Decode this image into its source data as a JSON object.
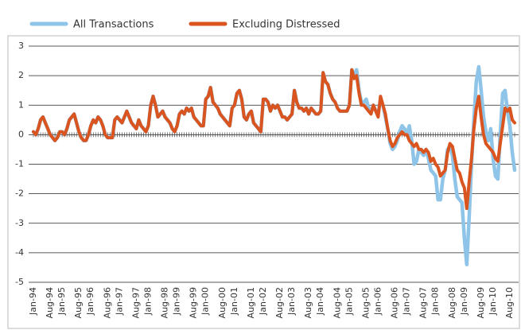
{
  "chart_data": {
    "type": "line",
    "categories": [
      "Jan-94",
      null,
      null,
      null,
      null,
      null,
      null,
      "Aug-94",
      null,
      null,
      null,
      null,
      "Jan-95",
      null,
      null,
      null,
      null,
      null,
      null,
      "Aug-95",
      null,
      null,
      null,
      null,
      "Jan-96",
      null,
      null,
      null,
      null,
      null,
      null,
      "Aug-96",
      null,
      null,
      null,
      null,
      "Jan-97",
      null,
      null,
      null,
      null,
      null,
      null,
      "Aug-97",
      null,
      null,
      null,
      null,
      "Jan-98",
      null,
      null,
      null,
      null,
      null,
      null,
      "Aug-98",
      null,
      null,
      null,
      null,
      "Jan-99",
      null,
      null,
      null,
      null,
      null,
      null,
      "Aug-99",
      null,
      null,
      null,
      null,
      "Jan-00",
      null,
      null,
      null,
      null,
      null,
      null,
      "Aug-00",
      null,
      null,
      null,
      null,
      "Jan-01",
      null,
      null,
      null,
      null,
      null,
      null,
      "Aug-01",
      null,
      null,
      null,
      null,
      "Jan-02",
      null,
      null,
      null,
      null,
      null,
      null,
      "Aug-02",
      null,
      null,
      null,
      null,
      "Jan-03",
      null,
      null,
      null,
      null,
      null,
      null,
      "Aug-03",
      null,
      null,
      null,
      null,
      "Jan-04",
      null,
      null,
      null,
      null,
      null,
      null,
      "Aug-04",
      null,
      null,
      null,
      null,
      "Jan-05",
      null,
      null,
      null,
      null,
      null,
      null,
      "Aug-05",
      null,
      null,
      null,
      null,
      "Jan-06",
      null,
      null,
      null,
      null,
      null,
      null,
      "Aug-06",
      null,
      null,
      null,
      null,
      "Jan-07",
      null,
      null,
      null,
      null,
      null,
      null,
      "Aug-07",
      null,
      null,
      null,
      null,
      "Jan-08",
      null,
      null,
      null,
      null,
      null,
      null,
      "Aug-08",
      null,
      null,
      null,
      null,
      "Jan-09",
      null,
      null,
      null,
      null,
      null,
      null,
      "Aug-09",
      null,
      null,
      null,
      null,
      "Jan-10",
      null,
      null,
      null,
      null,
      null,
      null,
      "Aug-10",
      null,
      null
    ],
    "series": [
      {
        "name": "All Transactions",
        "color": "#8ec4e8",
        "values": [
          0.1,
          0.0,
          0.2,
          0.5,
          0.6,
          0.4,
          0.2,
          0.0,
          -0.1,
          -0.2,
          -0.1,
          0.1,
          0.1,
          0.0,
          0.2,
          0.5,
          0.6,
          0.7,
          0.4,
          0.1,
          -0.1,
          -0.2,
          -0.2,
          0.0,
          0.3,
          0.5,
          0.4,
          0.6,
          0.5,
          0.3,
          0.0,
          -0.1,
          -0.1,
          -0.1,
          0.5,
          0.6,
          0.5,
          0.4,
          0.6,
          0.8,
          0.6,
          0.4,
          0.3,
          0.2,
          0.5,
          0.3,
          0.2,
          0.1,
          0.3,
          1.0,
          1.3,
          1.0,
          0.6,
          0.7,
          0.8,
          0.6,
          0.5,
          0.4,
          0.2,
          0.1,
          0.3,
          0.7,
          0.8,
          0.7,
          0.9,
          0.8,
          0.9,
          0.6,
          0.5,
          0.4,
          0.3,
          0.3,
          1.2,
          1.3,
          1.6,
          1.1,
          1.0,
          0.9,
          0.7,
          0.6,
          0.5,
          0.4,
          0.3,
          0.9,
          1.0,
          1.4,
          1.5,
          1.2,
          0.6,
          0.5,
          0.7,
          0.8,
          0.4,
          0.3,
          0.2,
          0.1,
          1.2,
          1.2,
          1.1,
          0.8,
          1.0,
          0.9,
          1.0,
          0.8,
          0.6,
          0.6,
          0.5,
          0.6,
          0.7,
          1.5,
          1.1,
          0.9,
          0.9,
          0.8,
          0.9,
          0.7,
          0.9,
          0.8,
          0.7,
          0.7,
          0.8,
          2.1,
          1.8,
          1.7,
          1.4,
          1.2,
          1.1,
          0.9,
          0.8,
          0.8,
          0.8,
          0.8,
          1.0,
          2.2,
          2.0,
          2.2,
          1.5,
          1.1,
          1.1,
          1.2,
          0.9,
          0.8,
          1.0,
          0.8,
          0.7,
          1.2,
          1.0,
          0.6,
          0.2,
          -0.3,
          -0.5,
          -0.4,
          -0.2,
          0.1,
          0.3,
          0.2,
          0.0,
          0.3,
          -0.2,
          -1.0,
          -0.9,
          -0.5,
          -0.6,
          -0.7,
          -0.5,
          -0.8,
          -1.2,
          -1.3,
          -1.4,
          -2.2,
          -2.2,
          -1.5,
          -1.2,
          -0.5,
          -0.4,
          -0.7,
          -1.5,
          -2.1,
          -2.2,
          -2.3,
          -3.5,
          -4.4,
          -2.8,
          -1.0,
          0.5,
          1.8,
          2.3,
          1.5,
          0.6,
          0.1,
          -0.2,
          0.2,
          -0.8,
          -1.4,
          -1.5,
          0.0,
          1.4,
          1.5,
          0.8,
          0.3,
          -0.6,
          -1.2
        ]
      },
      {
        "name": "Excluding Distressed",
        "color": "#d9541e",
        "values": [
          0.1,
          0.0,
          0.2,
          0.5,
          0.6,
          0.4,
          0.2,
          0.0,
          -0.1,
          -0.2,
          -0.1,
          0.1,
          0.1,
          0.0,
          0.2,
          0.5,
          0.6,
          0.7,
          0.4,
          0.1,
          -0.1,
          -0.2,
          -0.2,
          0.0,
          0.3,
          0.5,
          0.4,
          0.6,
          0.5,
          0.3,
          0.0,
          -0.1,
          -0.1,
          -0.1,
          0.5,
          0.6,
          0.5,
          0.4,
          0.6,
          0.8,
          0.6,
          0.4,
          0.3,
          0.2,
          0.5,
          0.3,
          0.2,
          0.1,
          0.3,
          1.0,
          1.3,
          1.0,
          0.6,
          0.7,
          0.8,
          0.6,
          0.5,
          0.4,
          0.2,
          0.1,
          0.3,
          0.7,
          0.8,
          0.7,
          0.9,
          0.8,
          0.9,
          0.6,
          0.5,
          0.4,
          0.3,
          0.3,
          1.2,
          1.3,
          1.6,
          1.1,
          1.0,
          0.9,
          0.7,
          0.6,
          0.5,
          0.4,
          0.3,
          0.9,
          1.0,
          1.4,
          1.5,
          1.2,
          0.6,
          0.5,
          0.7,
          0.8,
          0.4,
          0.3,
          0.2,
          0.1,
          1.2,
          1.2,
          1.1,
          0.8,
          1.0,
          0.9,
          1.0,
          0.8,
          0.6,
          0.6,
          0.5,
          0.6,
          0.7,
          1.5,
          1.1,
          0.9,
          0.9,
          0.8,
          0.9,
          0.7,
          0.9,
          0.8,
          0.7,
          0.7,
          0.8,
          2.1,
          1.8,
          1.7,
          1.4,
          1.2,
          1.1,
          0.9,
          0.8,
          0.8,
          0.8,
          0.8,
          1.0,
          2.2,
          1.9,
          2.0,
          1.4,
          1.0,
          1.0,
          0.9,
          0.8,
          0.7,
          1.0,
          0.8,
          0.6,
          1.3,
          1.0,
          0.7,
          0.2,
          -0.2,
          -0.4,
          -0.3,
          -0.1,
          0.0,
          0.1,
          0.0,
          0.0,
          -0.2,
          -0.3,
          -0.4,
          -0.3,
          -0.5,
          -0.5,
          -0.6,
          -0.5,
          -0.6,
          -0.9,
          -0.8,
          -1.0,
          -1.1,
          -1.4,
          -1.3,
          -1.2,
          -0.6,
          -0.3,
          -0.4,
          -0.8,
          -1.2,
          -1.3,
          -1.6,
          -1.8,
          -2.5,
          -1.6,
          -0.8,
          0.2,
          0.9,
          1.3,
          0.6,
          0.0,
          -0.3,
          -0.4,
          -0.5,
          -0.6,
          -0.8,
          -0.9,
          -0.3,
          0.3,
          0.9,
          0.8,
          0.9,
          0.5,
          0.4
        ]
      }
    ],
    "ylim": [
      -5,
      3
    ],
    "yticks": [
      -5,
      -4,
      -3,
      -2,
      -1,
      0,
      1,
      2,
      3
    ],
    "grid": true
  }
}
